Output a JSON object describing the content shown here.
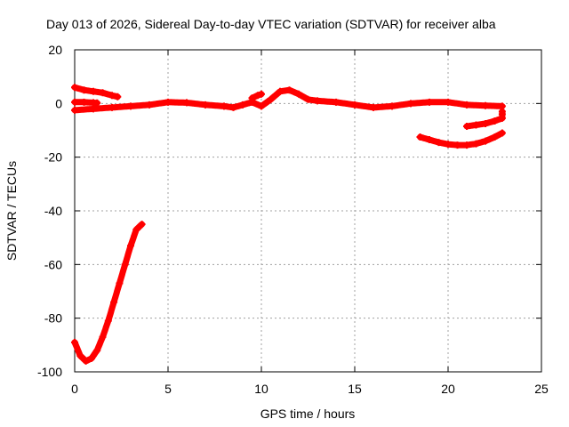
{
  "chart_data": {
    "type": "scatter",
    "title": "Day 013 of 2026, Sidereal Day-to-day VTEC variation (SDTVAR) for receiver alba",
    "xlabel": "GPS time / hours",
    "ylabel": "SDTVAR / TECUs",
    "xlim": [
      0,
      25
    ],
    "ylim": [
      -100,
      20
    ],
    "xticks": [
      0,
      5,
      10,
      15,
      20,
      25
    ],
    "yticks": [
      -100,
      -80,
      -60,
      -40,
      -20,
      0,
      20
    ],
    "grid": true,
    "marker": "+",
    "color": "#ff0000",
    "series": [
      {
        "x": [
          0.0,
          0.3,
          0.6,
          0.9,
          1.2,
          1.5,
          1.8,
          2.1,
          2.4,
          2.7,
          3.0,
          3.3,
          3.6
        ],
        "y": [
          -89,
          -94,
          -96,
          -95,
          -92,
          -87,
          -81,
          -74,
          -67,
          -60,
          -53,
          -47,
          -45
        ]
      },
      {
        "x": [
          0.0,
          0.5,
          1.0,
          1.5,
          2.0,
          2.3
        ],
        "y": [
          6,
          5,
          4.5,
          4,
          3,
          2.5
        ]
      },
      {
        "x": [
          0.0,
          0.5,
          1.0,
          1.2
        ],
        "y": [
          0.5,
          0.5,
          0.3,
          0.2
        ]
      },
      {
        "x": [
          0.0,
          1.0,
          2.0,
          3.0,
          4.0,
          5.0,
          6.0,
          7.0,
          8.0,
          8.5,
          9.0,
          9.5,
          10.0,
          10.5,
          11.0,
          11.5,
          12.0,
          12.5,
          13.0,
          14.0,
          15.0,
          16.0,
          17.0,
          18.0,
          19.0,
          20.0,
          21.0,
          22.0,
          22.9
        ],
        "y": [
          -2.5,
          -2.0,
          -1.5,
          -1.0,
          -0.5,
          0.5,
          0.3,
          -0.5,
          -1,
          -1.5,
          -0.5,
          0.5,
          -1,
          1.5,
          4.5,
          5,
          3.5,
          1.5,
          1,
          0.5,
          -0.5,
          -1.5,
          -1,
          0,
          0.5,
          0.5,
          -0.5,
          -0.8,
          -1
        ]
      },
      {
        "x": [
          9.5,
          9.8,
          10.0
        ],
        "y": [
          2,
          3,
          3.5
        ]
      },
      {
        "x": [
          18.5,
          19.0,
          19.5,
          20.0,
          20.5,
          21.0,
          21.5,
          22.0,
          22.5,
          22.9
        ],
        "y": [
          -12.5,
          -13.5,
          -14.5,
          -15.2,
          -15.5,
          -15.5,
          -15,
          -14,
          -12.5,
          -11
        ]
      },
      {
        "x": [
          21.0,
          21.5,
          22.0,
          22.5,
          22.9,
          22.9,
          22.9
        ],
        "y": [
          -8.5,
          -8,
          -7.5,
          -6.5,
          -5.5,
          -4,
          -3
        ]
      }
    ]
  }
}
